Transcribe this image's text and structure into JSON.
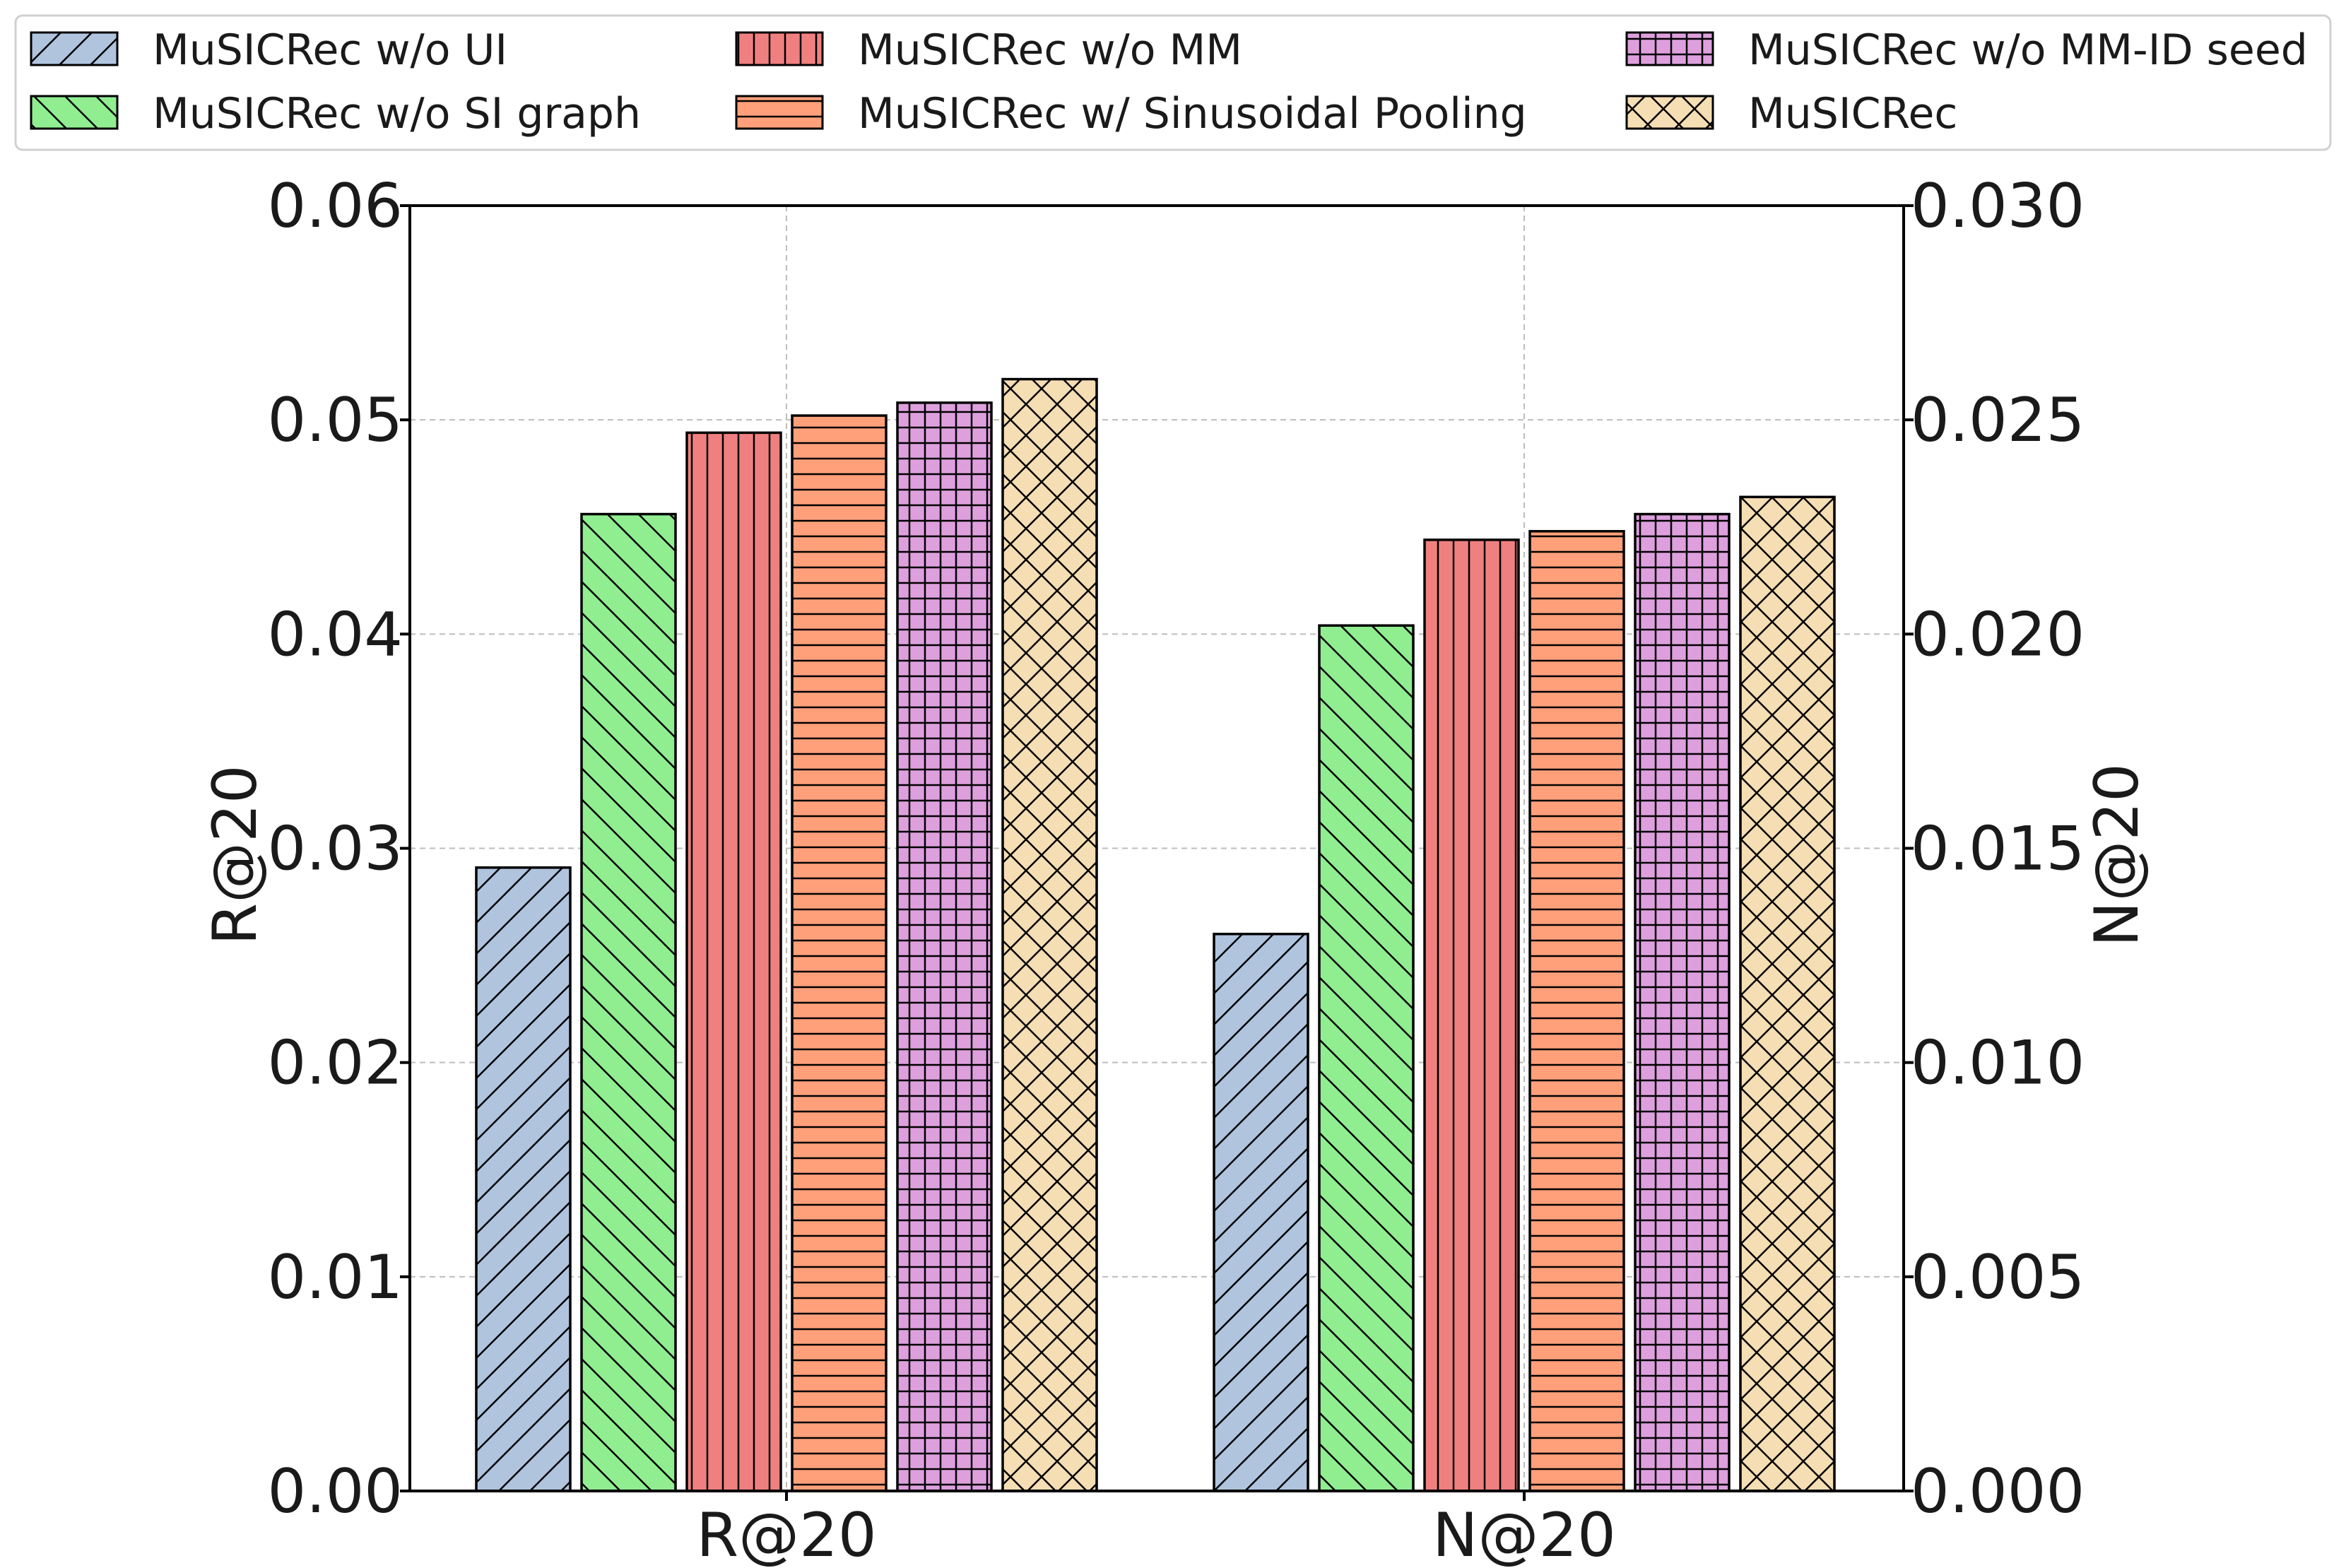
{
  "chart_data": {
    "type": "bar",
    "title": "",
    "categories": [
      "R@20",
      "N@20"
    ],
    "left_axis": {
      "label": "R@20",
      "ylim": [
        0,
        0.06
      ],
      "ticks": [
        "0.00",
        "0.01",
        "0.02",
        "0.03",
        "0.04",
        "0.05",
        "0.06"
      ]
    },
    "right_axis": {
      "label": "N@20",
      "ylim": [
        0,
        0.03
      ],
      "ticks": [
        "0.000",
        "0.005",
        "0.010",
        "0.015",
        "0.020",
        "0.025",
        "0.030"
      ]
    },
    "grid": true,
    "legend_placement": "top",
    "series": [
      {
        "name": "MuSICRec w/o UI",
        "color": "#b0c4de",
        "hatch": "diag-forward",
        "values": [
          0.0291,
          0.013
        ]
      },
      {
        "name": "MuSICRec w/o SI graph",
        "color": "#90ee90",
        "hatch": "diag-back",
        "values": [
          0.0456,
          0.0202
        ]
      },
      {
        "name": "MuSICRec w/o MM",
        "color": "#f08080",
        "hatch": "vertical",
        "values": [
          0.0494,
          0.0222
        ]
      },
      {
        "name": "MuSICRec w/ Sinusoidal Pooling",
        "color": "#ffa07a",
        "hatch": "horizontal",
        "values": [
          0.0502,
          0.0224
        ]
      },
      {
        "name": "MuSICRec w/o MM-ID seed",
        "color": "#dda0dd",
        "hatch": "grid",
        "values": [
          0.0508,
          0.0228
        ]
      },
      {
        "name": "MuSICRec",
        "color": "#f5deb3",
        "hatch": "cross",
        "values": [
          0.0519,
          0.0232
        ]
      }
    ]
  }
}
